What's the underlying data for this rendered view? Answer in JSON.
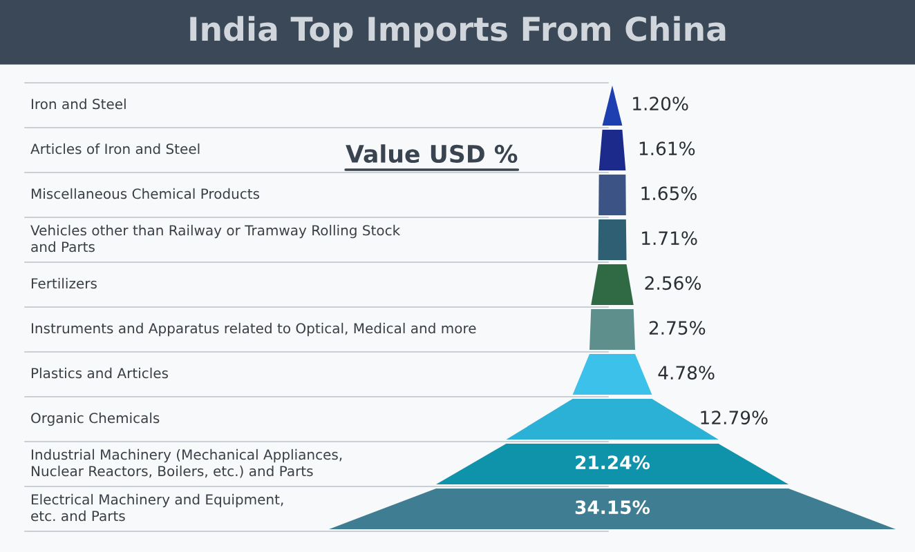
{
  "chart_data": {
    "type": "other",
    "title": "India Top Imports From China",
    "annotations": [
      "Value USD %"
    ],
    "categories": [
      "Iron and Steel",
      "Articles of Iron and Steel",
      "Miscellaneous Chemical Products",
      "Vehicles other than Railway or Tramway Rolling Stock\nand Parts",
      "Fertilizers",
      "Instruments and Apparatus related to Optical, Medical and more",
      "Plastics and Articles",
      "Organic Chemicals",
      "Industrial Machinery (Mechanical Appliances,\nNuclear Reactors, Boilers, etc.) and Parts",
      "Electrical Machinery and Equipment,\netc. and Parts"
    ],
    "values": [
      1.2,
      1.61,
      1.65,
      1.71,
      2.56,
      2.75,
      4.78,
      12.79,
      21.24,
      34.15
    ],
    "value_labels": [
      "1.20%",
      "1.61%",
      "1.65%",
      "1.71%",
      "2.56%",
      "2.75%",
      "4.78%",
      "12.79%",
      "21.24%",
      "34.15%"
    ],
    "colors": [
      "#1d3fb0",
      "#1c2a8c",
      "#3c5485",
      "#2e5f73",
      "#2f6a45",
      "#5f8f8c",
      "#3cc1ea",
      "#2bb0d6",
      "#0e93ab",
      "#3f7d92"
    ]
  }
}
